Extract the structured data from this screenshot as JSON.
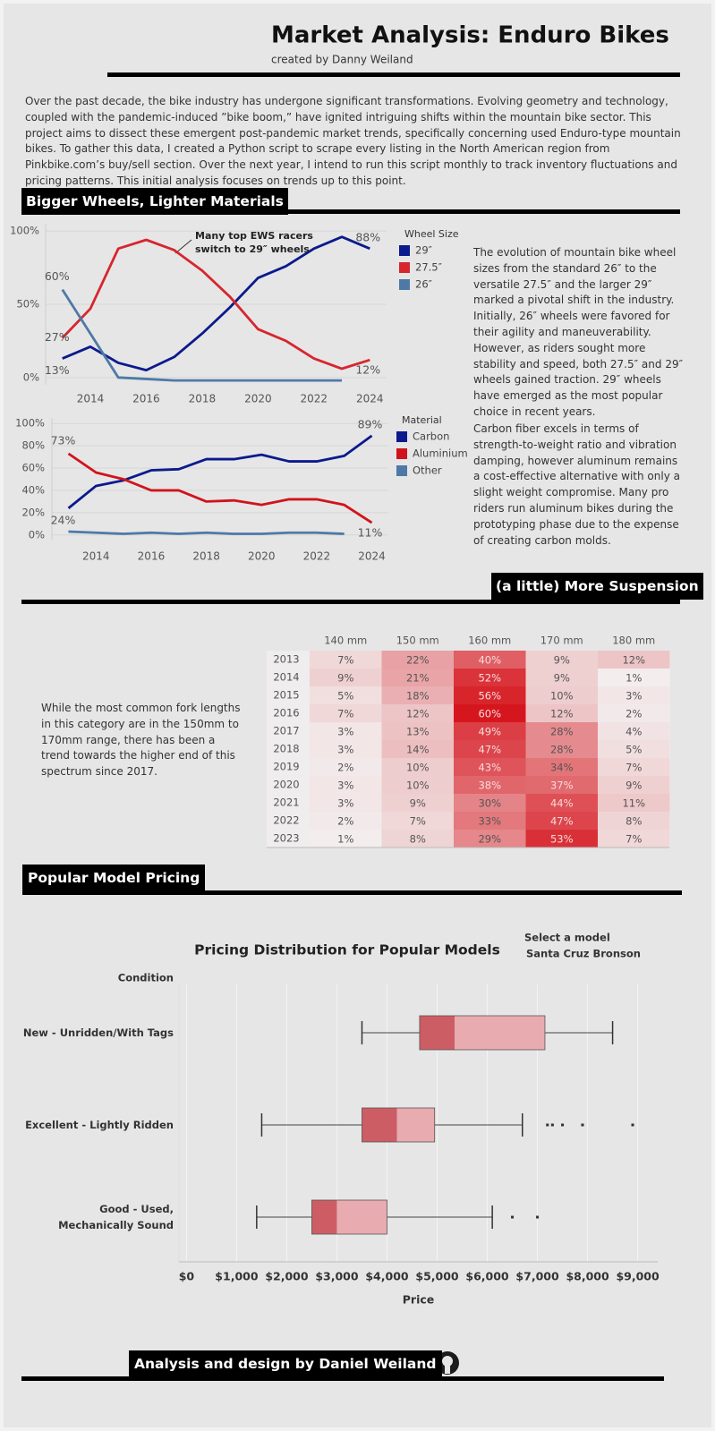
{
  "header": {
    "title": "Market Analysis: Enduro Bikes",
    "subtitle": "created by Danny Weiland"
  },
  "intro": "Over the past decade, the bike industry has undergone significant transformations. Evolving geometry and technology, coupled with the pandemic-induced ”bike boom,” have ignited intriguing shifts within the mountain bike sector. This project aims to dissect these emergent post-pandemic market trends, specifically concerning used Enduro-type mountain bikes. To gather this data, I created a Python script to scrape every listing in the North American region from Pinkbike.com’s buy/sell section. Over the next year, I intend to run this script monthly to track inventory fluctuations and pricing patterns.  This initial analysis focuses on trends up to this point.",
  "sections": [
    "Bigger Wheels, Lighter Materials",
    "(a little) More Suspension",
    "Popular Model Pricing"
  ],
  "notes": [
    "The evolution of mountain bike wheel sizes from the standard 26″ to the versatile 27.5″ and the larger 29″ marked a pivotal shift in the industry. Initially, 26″ wheels were favored for their agility and maneuverability. However, as riders sought more stability and speed, both 27.5″ and 29″ wheels gained traction. 29″ wheels have emerged as the most popular choice in recent years.",
    "Carbon fiber excels in terms of strength-to-weight ratio and vibration damping, however aluminum remains a cost-effective alternative with only a slight weight compromise.  Many pro riders run aluminum bikes during the prototyping phase due to the expense of creating carbon molds.",
    "While the most common fork lengths in this category are in the 150mm to 170mm range, there has been a trend towards the higher end of this spectrum since 2017."
  ],
  "footer": "Analysis and design by Daniel Weiland",
  "chart_data": [
    {
      "type": "line",
      "legend_title": "Wheel Size",
      "annotation": "Many top EWS racers switch to 29″ wheels",
      "x": [
        2013,
        2014,
        2015,
        2016,
        2017,
        2018,
        2019,
        2020,
        2021,
        2022,
        2023,
        2024
      ],
      "xlim": [
        2012.4,
        2024.6
      ],
      "xticks": [
        2014,
        2016,
        2018,
        2020,
        2022,
        2024
      ],
      "ylim": [
        -5,
        105
      ],
      "yticks": [
        {
          "value": 0,
          "label": "0%"
        },
        {
          "value": 50,
          "label": "50%"
        },
        {
          "value": 100,
          "label": "100%"
        }
      ],
      "grid": true,
      "series": [
        {
          "name": "29″",
          "color": "#0b1a8c",
          "values": [
            13,
            21,
            10,
            5,
            14,
            30,
            48,
            68,
            76,
            88,
            96,
            88
          ],
          "value_labels": [
            "13%",
            null,
            null,
            null,
            null,
            null,
            null,
            null,
            null,
            null,
            null,
            "88%"
          ]
        },
        {
          "name": "27.5″",
          "color": "#d6262e",
          "values": [
            27,
            47,
            88,
            94,
            87,
            73,
            55,
            33,
            25,
            13,
            6,
            12
          ],
          "value_labels": [
            "27%",
            null,
            null,
            null,
            null,
            null,
            null,
            null,
            null,
            null,
            null,
            "12%"
          ]
        },
        {
          "name": "26″",
          "color": "#4e79a7",
          "values": [
            60,
            30,
            0,
            -1,
            -2,
            -2,
            -2,
            -2,
            -2,
            -2,
            -2,
            null
          ],
          "value_labels": [
            "60%",
            null,
            null,
            null,
            null,
            null,
            null,
            null,
            null,
            null,
            null,
            null
          ]
        }
      ]
    },
    {
      "type": "line",
      "legend_title": "Material",
      "x": [
        2013,
        2014,
        2015,
        2016,
        2017,
        2018,
        2019,
        2020,
        2021,
        2022,
        2023,
        2024
      ],
      "xlim": [
        2012.4,
        2024.6
      ],
      "xticks": [
        2014,
        2016,
        2018,
        2020,
        2022,
        2024
      ],
      "ylim": [
        -5,
        105
      ],
      "yticks": [
        {
          "value": 0,
          "label": "0%"
        },
        {
          "value": 20,
          "label": "20%"
        },
        {
          "value": 40,
          "label": "40%"
        },
        {
          "value": 60,
          "label": "60%"
        },
        {
          "value": 80,
          "label": "80%"
        },
        {
          "value": 100,
          "label": "100%"
        }
      ],
      "grid": true,
      "series": [
        {
          "name": "Carbon",
          "color": "#0b1a8c",
          "values": [
            24,
            44,
            49,
            58,
            59,
            68,
            68,
            72,
            66,
            66,
            71,
            89
          ],
          "value_labels": [
            "24%",
            null,
            null,
            null,
            null,
            null,
            null,
            null,
            null,
            null,
            null,
            "89%"
          ]
        },
        {
          "name": "Aluminium",
          "color": "#d0141b",
          "values": [
            73,
            56,
            50,
            40,
            40,
            30,
            31,
            27,
            32,
            32,
            27,
            11
          ],
          "value_labels": [
            "73%",
            null,
            null,
            null,
            null,
            null,
            null,
            null,
            null,
            null,
            null,
            "11%"
          ]
        },
        {
          "name": "Other",
          "color": "#4e79a7",
          "values": [
            3,
            2,
            1,
            2,
            1,
            2,
            1,
            1,
            2,
            2,
            1,
            null
          ],
          "value_labels": [
            null,
            null,
            null,
            null,
            null,
            null,
            null,
            null,
            null,
            null,
            null,
            null
          ]
        }
      ]
    },
    {
      "type": "heatmap",
      "color_range": [
        "#f3f1f1",
        "#d6161e"
      ],
      "columns": [
        "140 mm",
        "150 mm",
        "160 mm",
        "170 mm",
        "180 mm"
      ],
      "rows": [
        "2013",
        "2014",
        "2015",
        "2016",
        "2017",
        "2018",
        "2019",
        "2020",
        "2021",
        "2022",
        "2023"
      ],
      "values": [
        [
          7,
          22,
          40,
          9,
          12
        ],
        [
          9,
          21,
          52,
          9,
          1
        ],
        [
          5,
          18,
          56,
          10,
          3
        ],
        [
          7,
          12,
          60,
          12,
          2
        ],
        [
          3,
          13,
          49,
          28,
          4
        ],
        [
          3,
          14,
          47,
          28,
          5
        ],
        [
          2,
          10,
          43,
          34,
          7
        ],
        [
          3,
          10,
          38,
          37,
          9
        ],
        [
          3,
          9,
          30,
          44,
          11
        ],
        [
          2,
          7,
          33,
          47,
          8
        ],
        [
          1,
          8,
          29,
          53,
          7
        ]
      ],
      "value_labels": [
        [
          "7%",
          "22%",
          "40%",
          "9%",
          "12%"
        ],
        [
          "9%",
          "21%",
          "52%",
          "9%",
          "1%"
        ],
        [
          "5%",
          "18%",
          "56%",
          "10%",
          "3%"
        ],
        [
          "7%",
          "12%",
          "60%",
          "12%",
          "2%"
        ],
        [
          "3%",
          "13%",
          "49%",
          "28%",
          "4%"
        ],
        [
          "3%",
          "14%",
          "47%",
          "28%",
          "5%"
        ],
        [
          "2%",
          "10%",
          "43%",
          "34%",
          "7%"
        ],
        [
          "3%",
          "10%",
          "38%",
          "37%",
          "9%"
        ],
        [
          "3%",
          "9%",
          "30%",
          "44%",
          "11%"
        ],
        [
          "2%",
          "7%",
          "33%",
          "47%",
          "8%"
        ],
        [
          "1%",
          "8%",
          "29%",
          "53%",
          "7%"
        ]
      ]
    },
    {
      "type": "box",
      "title": "Pricing Distribution for Popular Models",
      "selector_label": "Select a model",
      "selected": "Santa Cruz Bronson",
      "y_label": "Condition",
      "x_label": "Price",
      "categories": [
        "New - Unridden/With Tags",
        "Excellent - Lightly Ridden",
        "Good - Used, Mechanically Sound"
      ],
      "boxes": [
        {
          "whisker_low": 3500,
          "q1": 4650,
          "median": 5350,
          "q3": 7150,
          "whisker_high": 8500,
          "outliers": []
        },
        {
          "whisker_low": 1500,
          "q1": 3500,
          "median": 4200,
          "q3": 4950,
          "whisker_high": 6700,
          "outliers": [
            7200,
            7300,
            7500,
            7900,
            8900
          ]
        },
        {
          "whisker_low": 1400,
          "q1": 2500,
          "median": 3000,
          "q3": 4000,
          "whisker_high": 6100,
          "outliers": [
            6500,
            7000
          ]
        }
      ],
      "colors": [
        "#cd5d64",
        "#e8abaf"
      ],
      "xlim": [
        -150,
        9400
      ],
      "xticks": [
        {
          "value": 0,
          "label": "$0"
        },
        {
          "value": 1000,
          "label": "$1,000"
        },
        {
          "value": 2000,
          "label": "$2,000"
        },
        {
          "value": 3000,
          "label": "$3,000"
        },
        {
          "value": 4000,
          "label": "$4,000"
        },
        {
          "value": 5000,
          "label": "$5,000"
        },
        {
          "value": 6000,
          "label": "$6,000"
        },
        {
          "value": 7000,
          "label": "$7,000"
        },
        {
          "value": 8000,
          "label": "$8,000"
        },
        {
          "value": 9000,
          "label": "$9,000"
        }
      ],
      "grid": true
    }
  ]
}
